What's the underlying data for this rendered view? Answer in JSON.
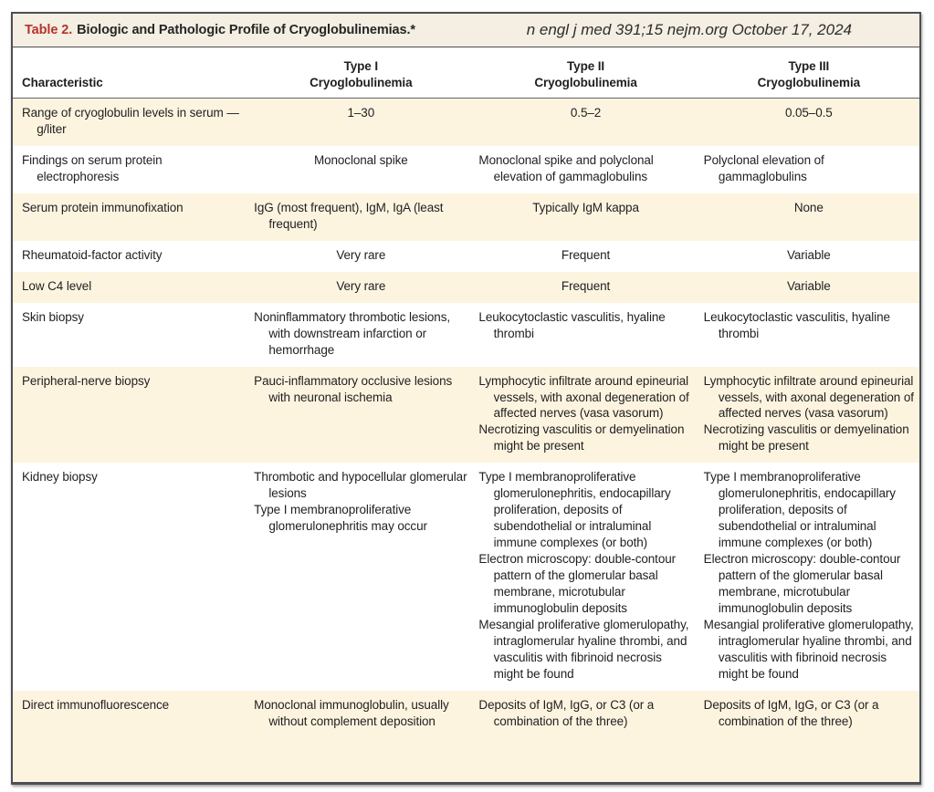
{
  "header": {
    "table_label": "Table 2.",
    "title": "Biologic and Pathologic Profile of Cryoglobulinemias.*",
    "journal_note": "n engl j med 391;15 nejm.org October 17, 2024"
  },
  "columns": {
    "characteristic": "Characteristic",
    "type1": {
      "line1": "Type I",
      "line2": "Cryoglobulinemia"
    },
    "type2": {
      "line1": "Type II",
      "line2": "Cryoglobulinemia"
    },
    "type3": {
      "line1": "Type III",
      "line2": "Cryoglobulinemia"
    }
  },
  "colors": {
    "accent_red": "#b5342c",
    "title_band_cream": "#f4eee3",
    "row_stripe_cream": "#fdf4e0",
    "border_dark": "#4d4e52",
    "text": "#1f1f1f"
  },
  "rows": [
    {
      "shaded": true,
      "characteristic": "Range of cryoglobulin levels in serum — g/liter",
      "type1": [
        "1–30"
      ],
      "type2": [
        "0.5–2"
      ],
      "type3": [
        "0.05–0.5"
      ]
    },
    {
      "shaded": false,
      "characteristic": "Findings on serum protein electrophoresis",
      "type1": [
        "Monoclonal spike"
      ],
      "type2": [
        "Monoclonal spike and polyclonal elevation of gammaglobulins"
      ],
      "type3": [
        "Polyclonal elevation of gammaglobulins"
      ]
    },
    {
      "shaded": true,
      "characteristic": "Serum protein immunofixation",
      "type1": [
        "IgG (most frequent), IgM, IgA (least frequent)"
      ],
      "type2": [
        "Typically IgM kappa"
      ],
      "type3": [
        "None"
      ]
    },
    {
      "shaded": false,
      "characteristic": "Rheumatoid-factor activity",
      "type1": [
        "Very rare"
      ],
      "type2": [
        "Frequent"
      ],
      "type3": [
        "Variable"
      ]
    },
    {
      "shaded": true,
      "characteristic": "Low C4 level",
      "type1": [
        "Very rare"
      ],
      "type2": [
        "Frequent"
      ],
      "type3": [
        "Variable"
      ]
    },
    {
      "shaded": false,
      "characteristic": "Skin biopsy",
      "type1": [
        "Noninflammatory thrombotic lesions, with downstream infarction or hemorrhage"
      ],
      "type2": [
        "Leukocytoclastic vasculitis, hyaline thrombi"
      ],
      "type3": [
        "Leukocytoclastic vasculitis, hyaline thrombi"
      ]
    },
    {
      "shaded": true,
      "characteristic": "Peripheral-nerve biopsy",
      "type1": [
        "Pauci-inflammatory occlusive lesions with neuronal ischemia"
      ],
      "type2": [
        "Lymphocytic infiltrate around epineurial vessels, with axonal degeneration of affected nerves (vasa vasorum)",
        "Necrotizing vasculitis or demyelination might be present"
      ],
      "type3": [
        "Lymphocytic infiltrate around epineurial vessels, with axonal degeneration of affected nerves (vasa vasorum)",
        "Necrotizing vasculitis or demyelination might be present"
      ]
    },
    {
      "shaded": false,
      "characteristic": "Kidney biopsy",
      "type1": [
        "Thrombotic and hypocellular glomerular lesions",
        "Type I membranoproliferative glomerulonephritis may occur"
      ],
      "type2": [
        "Type I membranoproliferative glomerulonephritis, endocapillary proliferation, deposits of subendothelial or intraluminal immune complexes (or both)",
        "Electron microscopy: double-contour pattern of the glomerular basal membrane, microtubular immunoglobulin deposits",
        "Mesangial proliferative glomerulopathy, intraglomerular hyaline thrombi, and vasculitis with fibrinoid necrosis might be found"
      ],
      "type3": [
        "Type I membranoproliferative glomerulonephritis, endocapillary proliferation, deposits of subendothelial or intraluminal immune complexes (or both)",
        "Electron microscopy: double-contour pattern of the glomerular basal membrane, microtubular immunoglobulin deposits",
        "Mesangial proliferative glomerulopathy, intraglomerular hyaline thrombi, and vasculitis with fibrinoid necrosis might be found"
      ]
    },
    {
      "shaded": true,
      "characteristic": "Direct immunofluorescence",
      "type1": [
        "Monoclonal immunoglobulin, usually without complement deposition"
      ],
      "type2": [
        "Deposits of IgM, IgG, or C3 (or a combination of the three)"
      ],
      "type3": [
        "Deposits of IgM, IgG, or C3 (or a combination of the three)"
      ]
    }
  ]
}
